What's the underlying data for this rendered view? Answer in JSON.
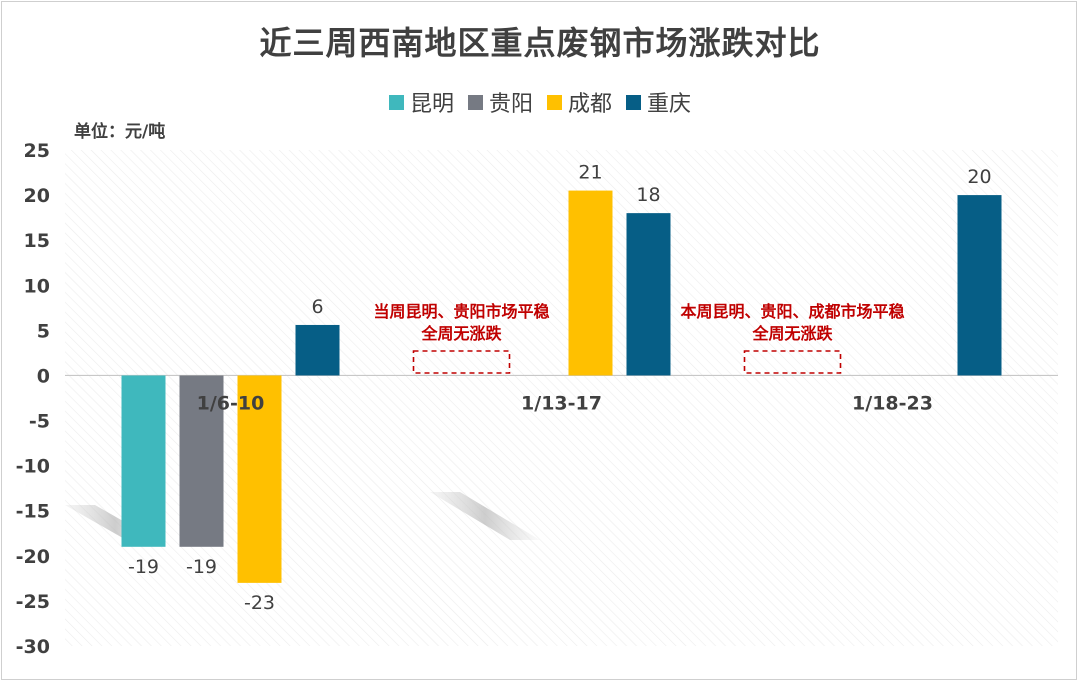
{
  "chart_data": {
    "type": "bar",
    "title": "近三周西南地区重点废钢市场涨跌对比",
    "unit_label": "单位：元/吨",
    "categories": [
      "1/6-10",
      "1/13-17",
      "1/18-23"
    ],
    "ylim": [
      -30,
      25
    ],
    "yticks": [
      25,
      20,
      15,
      10,
      5,
      0,
      -5,
      -10,
      -15,
      -20,
      -25,
      -30
    ],
    "grid": false,
    "legend_position": "top",
    "series": [
      {
        "name": "昆明",
        "color": "#3fb8bd",
        "values": [
          -19,
          null,
          null
        ]
      },
      {
        "name": "贵阳",
        "color": "#767a83",
        "values": [
          -19,
          null,
          null
        ]
      },
      {
        "name": "成都",
        "color": "#ffc000",
        "values": [
          -23,
          20.5,
          null
        ]
      },
      {
        "name": "重庆",
        "color": "#065e86",
        "values": [
          5.6,
          18,
          20
        ]
      }
    ],
    "data_labels": [
      [
        "-19",
        "",
        ""
      ],
      [
        "-19",
        "",
        ""
      ],
      [
        "-23",
        "21",
        ""
      ],
      [
        "6",
        "18",
        "20"
      ]
    ],
    "annotations": [
      {
        "category": 1,
        "lines": [
          "当周昆明、贵阳市场平稳",
          "全周无涨跌"
        ]
      },
      {
        "category": 2,
        "lines": [
          "本周昆明、贵阳、成都市场平稳",
          "全周无涨跌"
        ]
      }
    ]
  }
}
